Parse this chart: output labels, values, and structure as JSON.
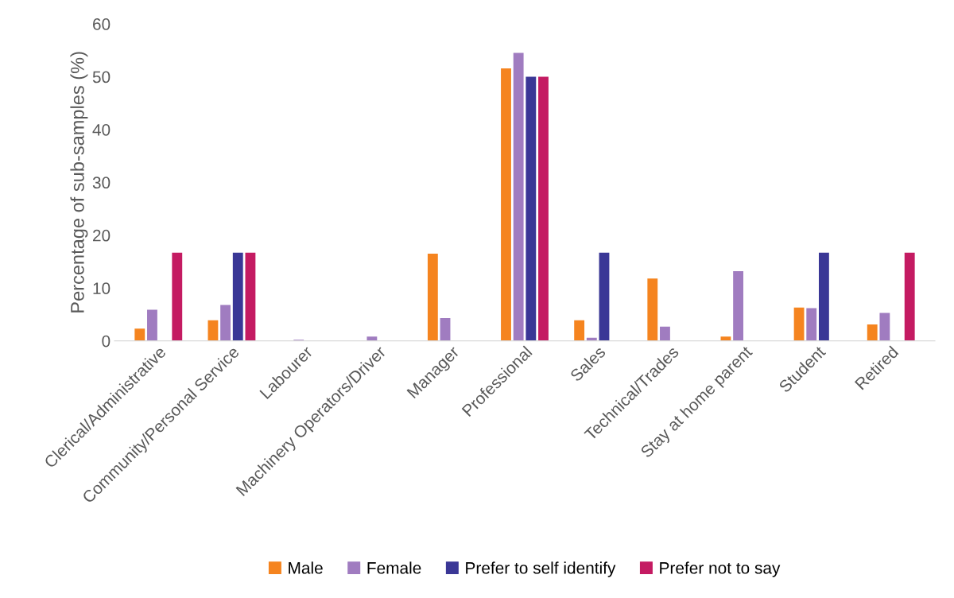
{
  "chart_data": {
    "type": "bar",
    "ylabel": "Percentage of sub-samples (%)",
    "categories": [
      "Clerical/Administrative",
      "Community/Personal Service",
      "Labourer",
      "Machinery Operators/Driver",
      "Manager",
      "Professional",
      "Sales",
      "Technical/Trades",
      "Stay at home parent",
      "Student",
      "Retired"
    ],
    "series": [
      {
        "name": "Male",
        "color": "#f5841f",
        "values": [
          2.3,
          3.9,
          0,
          0,
          16.5,
          51.6,
          3.9,
          11.8,
          0.8,
          6.3,
          3.1
        ]
      },
      {
        "name": "Female",
        "color": "#a07cc0",
        "values": [
          5.9,
          6.8,
          0.2,
          0.8,
          4.3,
          54.5,
          0.6,
          2.7,
          13.2,
          6.2,
          5.3
        ]
      },
      {
        "name": "Prefer to self identify",
        "color": "#3a3796",
        "values": [
          0,
          16.7,
          0,
          0,
          0,
          50,
          16.7,
          0,
          0,
          16.7,
          0
        ]
      },
      {
        "name": "Prefer not to say",
        "color": "#c41b62",
        "values": [
          16.7,
          16.7,
          0,
          0,
          0,
          50,
          0,
          0,
          0,
          0,
          16.7
        ]
      }
    ],
    "ylim": [
      0,
      60
    ],
    "yticks": [
      0,
      10,
      20,
      30,
      40,
      50,
      60
    ],
    "grid": false,
    "legend": "bottom"
  }
}
